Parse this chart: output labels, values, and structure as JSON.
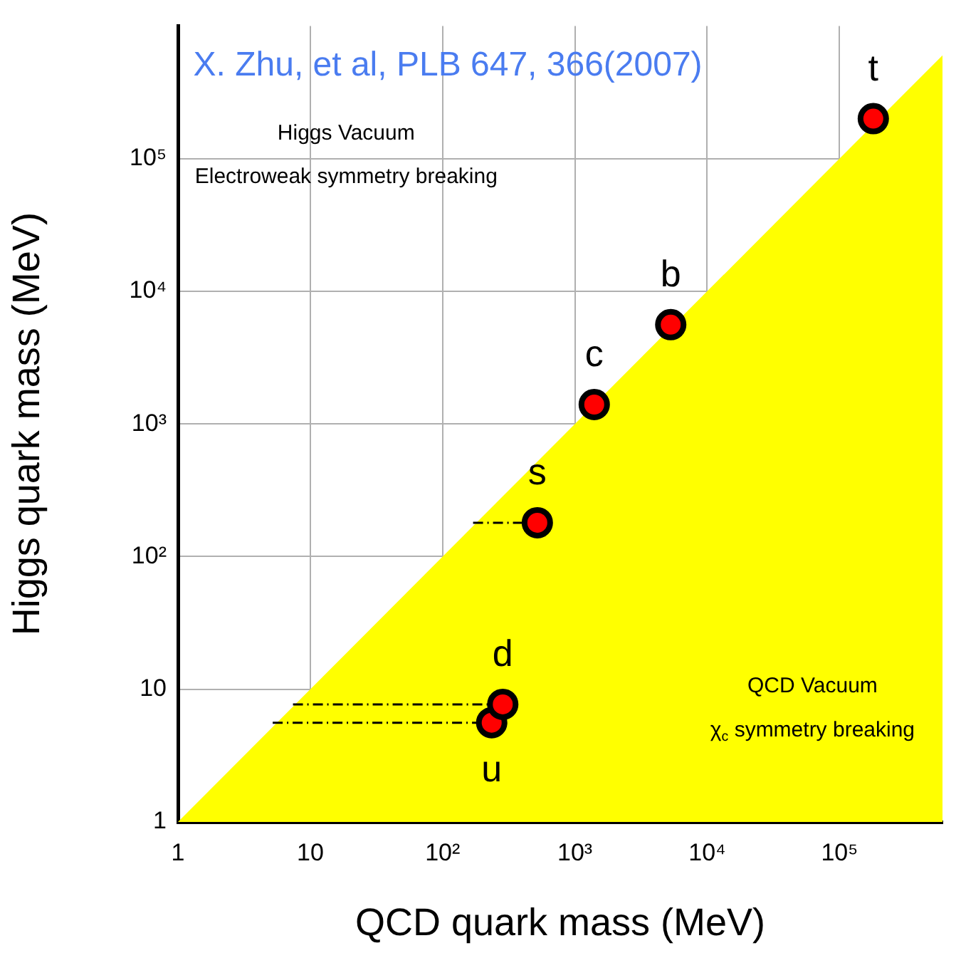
{
  "chart_data": {
    "type": "scatter",
    "xlabel": "QCD quark mass (MeV)",
    "ylabel": "Higgs quark mass (MeV)",
    "log": "xy",
    "grid": true,
    "legend": false,
    "xlim": [
      1,
      600000
    ],
    "ylim": [
      1,
      1000000
    ],
    "xticks": [
      1,
      10,
      {
        "value": 100,
        "label": "10²"
      },
      {
        "value": 1000,
        "label": "10³"
      },
      {
        "value": 10000,
        "label": "10⁴"
      },
      {
        "value": 100000,
        "label": "10⁵"
      }
    ],
    "yticks": [
      1,
      10,
      {
        "value": 100,
        "label": "10²"
      },
      {
        "value": 1000,
        "label": "10³"
      },
      {
        "value": 10000,
        "label": "10⁴"
      },
      {
        "value": 100000,
        "label": "10⁵"
      }
    ],
    "series": [
      {
        "type": "area",
        "color": "#ffff00",
        "marker": "none",
        "x": [
          1,
          600000
        ],
        "values": [
          1,
          600000
        ]
      },
      {
        "type": "line",
        "color": "#000000",
        "line_style": "dashed",
        "marker": "none",
        "x": [
          170,
          520
        ],
        "values": [
          180,
          180
        ]
      },
      {
        "type": "line",
        "color": "#000000",
        "line_style": "dashed",
        "marker": "none",
        "x": [
          7.4,
          285
        ],
        "values": [
          7.7,
          7.7
        ]
      },
      {
        "type": "line",
        "color": "#000000",
        "line_style": "dashed",
        "marker": "none",
        "x": [
          5.2,
          235
        ],
        "values": [
          5.6,
          5.6
        ]
      },
      {
        "type": "scatter",
        "color": "#ff0000",
        "marker": "circle",
        "x": [
          235,
          285,
          520,
          1400,
          5300,
          180000
        ],
        "values": [
          5.6,
          7.7,
          180,
          1400,
          5600,
          200000
        ]
      }
    ],
    "annotations": [
      "X. Zhu, et al, PLB 647, 366(2007)",
      "Higgs Vacuum",
      "Electroweak symmetry breaking",
      "QCD Vacuum",
      "χ$_{c}$ symmetry breaking",
      {
        "text": "u",
        "x": 235,
        "y": 5.6
      },
      {
        "text": "d",
        "x": 285,
        "y": 7.7
      },
      {
        "text": "s",
        "x": 520,
        "y": 180
      },
      {
        "text": "c",
        "x": 1400,
        "y": 1400
      },
      {
        "text": "b",
        "x": 5300,
        "y": 5600
      },
      {
        "text": "t",
        "x": 180000,
        "y": 200000
      }
    ]
  }
}
